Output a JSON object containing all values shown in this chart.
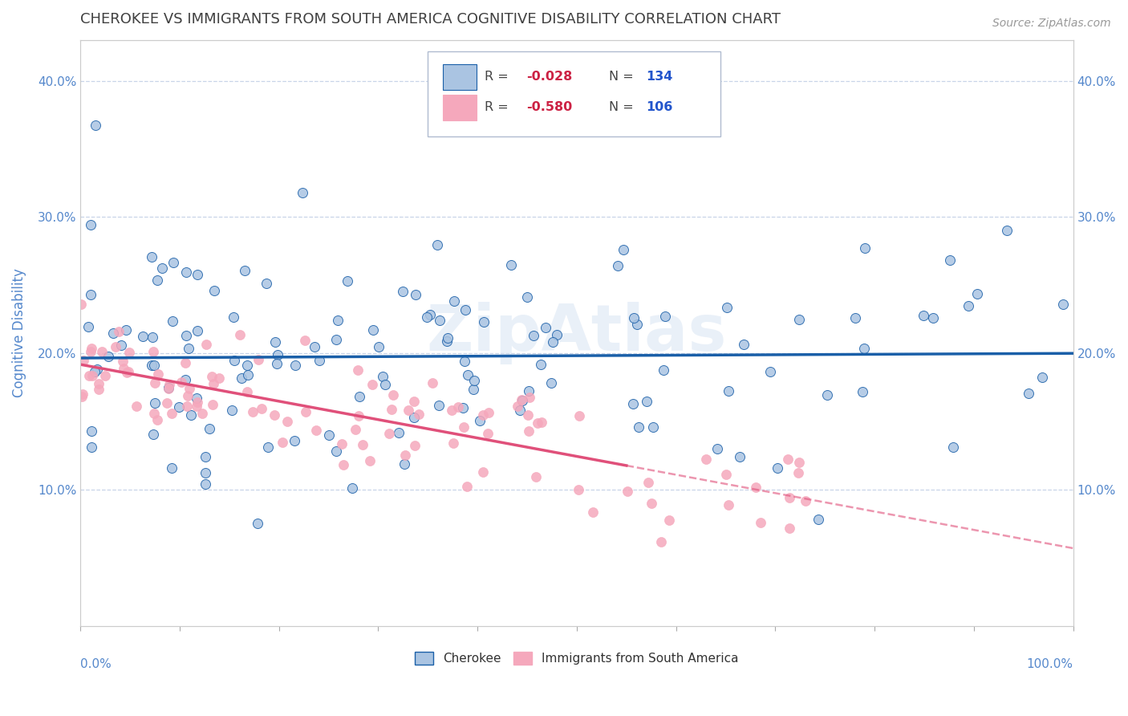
{
  "title": "CHEROKEE VS IMMIGRANTS FROM SOUTH AMERICA COGNITIVE DISABILITY CORRELATION CHART",
  "source": "Source: ZipAtlas.com",
  "ylabel": "Cognitive Disability",
  "yticks": [
    0.0,
    0.1,
    0.2,
    0.3,
    0.4
  ],
  "ytick_labels": [
    "",
    "10.0%",
    "20.0%",
    "30.0%",
    "40.0%"
  ],
  "xlim": [
    0.0,
    1.0
  ],
  "ylim": [
    0.0,
    0.43
  ],
  "cherokee_R": -0.028,
  "cherokee_N": 134,
  "sa_R": -0.58,
  "sa_N": 106,
  "cherokee_color": "#aac4e2",
  "sa_color": "#f5a8bc",
  "cherokee_line_color": "#1a5fa8",
  "sa_line_color": "#e0507a",
  "background_color": "#ffffff",
  "grid_color": "#c8d4e8",
  "title_color": "#404040",
  "axis_color": "#5588cc",
  "legend_R_color": "#cc2244",
  "legend_N_color": "#2255cc",
  "watermark_color": "#d0dff0"
}
